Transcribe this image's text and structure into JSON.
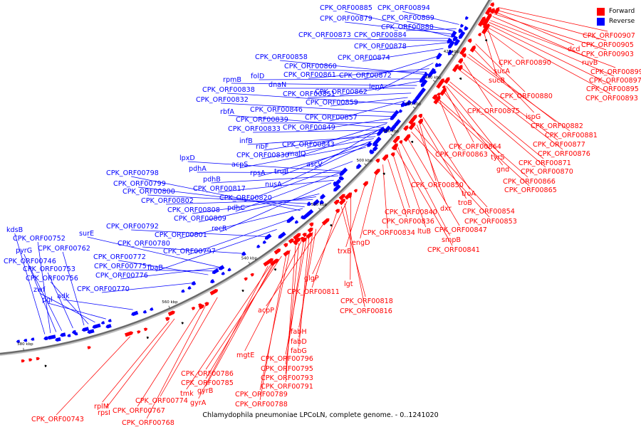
{
  "caption": "Chlamydophila pneumoniae LPCoLN, complete genome. - 0..1241020",
  "legend": {
    "forward": "Forward",
    "reverse": "Reverse",
    "forward_color": "#ff0000",
    "reverse_color": "#0000ff"
  },
  "backbone_color": "#888888",
  "ticks": [
    "420 kbp",
    "440 kbp",
    "460 kbp",
    "480 kbp",
    "500 kbp",
    "520 kbp",
    "540 kbp",
    "560 kbp",
    "580 kbp"
  ],
  "reverse_labels": [
    "CPK_ORF00894",
    "CPK_ORF00885",
    "CPK_ORF00879",
    "CPK_ORF00889",
    "CPK_ORF00888",
    "CPK_ORF00873",
    "CPK_ORF00884",
    "CPK_ORF00878",
    "CPK_ORF00858",
    "CPK_ORF00874",
    "CPK_ORF00860",
    "folD",
    "rpmB",
    "CPK_ORF00861",
    "CPK_ORF00872",
    "dnaN",
    "lepA",
    "CPK_ORF00838",
    "CPK_ORF00851",
    "CPK_ORF00862",
    "CPK_ORF00832",
    "CPK_ORF00859",
    "rbfA",
    "CPK_ORF00846",
    "CPK_ORF00839",
    "CPK_ORF00857",
    "CPK_ORF00833",
    "CPK_ORF00849",
    "infB",
    "ribF",
    "CPK_ORF00843",
    "CPK_ORF00830",
    "malQ",
    "acpS",
    "ascV",
    "lpxD",
    "rpsA",
    "truB",
    "pdhA",
    "CPK_ORF00798",
    "pdhB",
    "nusA",
    "CPK_ORF00799",
    "CPK_ORF00817",
    "CPK_ORF00800",
    "CPK_ORF00820",
    "CPK_ORF00802",
    "pdhC",
    "CPK_ORF00808",
    "CPK_ORF00809",
    "CPK_ORF00792",
    "recR",
    "kdsB",
    "surE",
    "CPK_ORF00801",
    "CPK_ORF00752",
    "CPK_ORF00780",
    "pyrG",
    "CPK_ORF00762",
    "CPK_ORF00797",
    "CPK_ORF00772",
    "CPK_ORF00746",
    "CPK_ORF00775",
    "fbaB",
    "CPK_ORF00753",
    "CPK_ORF00776",
    "CPK_ORF00756",
    "zwf",
    "CPK_ORF00770",
    "pgl",
    "adk"
  ],
  "forward_labels": [
    "CPK_ORF00907",
    "dcd",
    "CPK_ORF00905",
    "CPK_ORF00903",
    "ruvB",
    "CPK_ORF00890",
    "sucA",
    "CPK_ORF00899",
    "sucB",
    "CPK_ORF00897",
    "CPK_ORF00895",
    "CPK_ORF00893",
    "CPK_ORF00880",
    "CPK_ORF00875",
    "ispG",
    "CPK_ORF00882",
    "CPK_ORF00881",
    "CPK_ORF00877",
    "CPK_ORF00864",
    "CPK_ORF00876",
    "CPK_ORF00863",
    "tyrS",
    "CPK_ORF00871",
    "gnd",
    "CPK_ORF00870",
    "CPK_ORF00866",
    "CPK_ORF00865",
    "CPK_ORF00850",
    "troA",
    "troB",
    "dxr",
    "CPK_ORF00854",
    "CPK_ORF00840",
    "CPK_ORF00853",
    "CPK_ORF00836",
    "CPK_ORF00847",
    "CPK_ORF00834",
    "ltuB",
    "engD",
    "smpB",
    "CPK_ORF00841",
    "trxB",
    "glgP",
    "lgt",
    "CPK_ORF00811",
    "CPK_ORF00818",
    "CPK_ORF00816",
    "acpP",
    "fabH",
    "fabD",
    "fabG",
    "mgtE",
    "CPK_ORF00796",
    "CPK_ORF00795",
    "CPK_ORF00786",
    "CPK_ORF00793",
    "CPK_ORF00785",
    "CPK_ORF00791",
    "tmk",
    "gyrB",
    "CPK_ORF00789",
    "gyrA",
    "CPK_ORF00788",
    "CPK_ORF00774",
    "rplM",
    "CPK_ORF00767",
    "rpsI",
    "CPK_ORF00743",
    "CPK_ORF00768"
  ]
}
